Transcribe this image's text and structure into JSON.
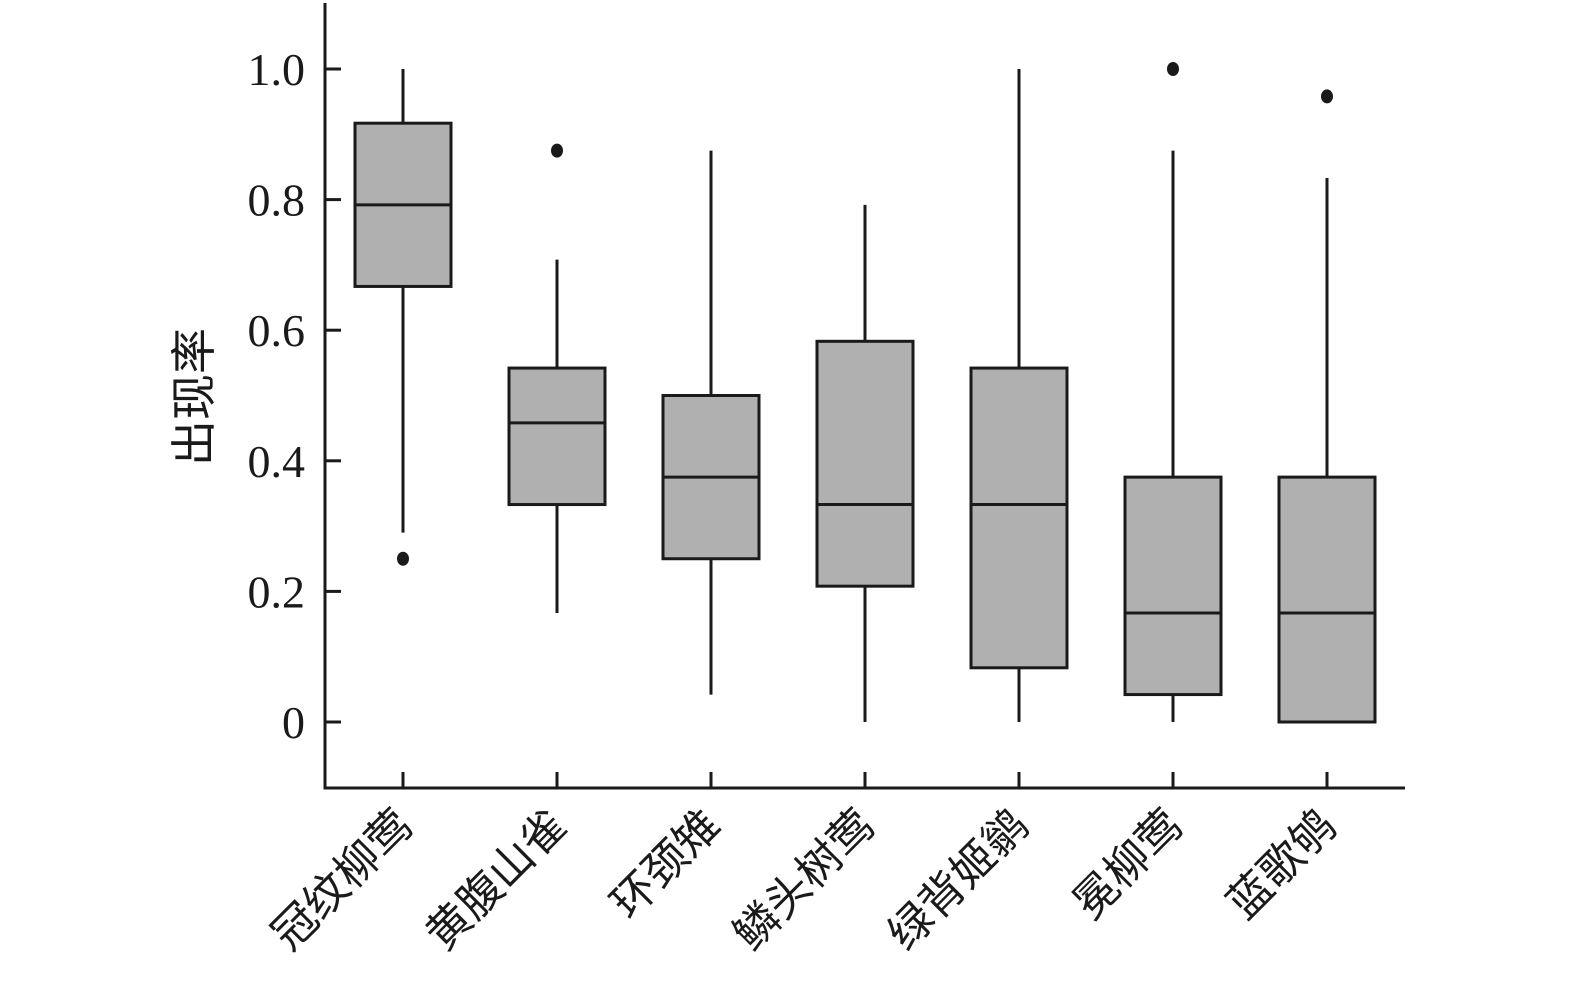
{
  "chart_data": {
    "type": "box",
    "title": "",
    "xlabel": "",
    "ylabel": "出现率",
    "ylim": [
      -0.1,
      1.1
    ],
    "yticks": [
      0,
      0.2,
      0.4,
      0.6,
      0.8,
      1.0
    ],
    "ytick_labels": [
      "0",
      "0.2",
      "0.4",
      "0.6",
      "0.8",
      "1.0"
    ],
    "grid": false,
    "box_color": "#b0b0b0",
    "line_color": "#1a1a1a",
    "categories": [
      "冠纹柳莺",
      "黄腹山雀",
      "环颈雉",
      "鳞头树莺",
      "绿背姬鹟",
      "冕柳莺",
      "蓝歌鸲"
    ],
    "boxes": [
      {
        "whisker_low": 0.29,
        "q1": 0.667,
        "median": 0.792,
        "q3": 0.917,
        "whisker_high": 1.0,
        "outliers": [
          0.25
        ]
      },
      {
        "whisker_low": 0.167,
        "q1": 0.333,
        "median": 0.458,
        "q3": 0.542,
        "whisker_high": 0.708,
        "outliers": [
          0.875
        ]
      },
      {
        "whisker_low": 0.042,
        "q1": 0.25,
        "median": 0.375,
        "q3": 0.5,
        "whisker_high": 0.875,
        "outliers": []
      },
      {
        "whisker_low": 0.0,
        "q1": 0.208,
        "median": 0.333,
        "q3": 0.583,
        "whisker_high": 0.792,
        "outliers": []
      },
      {
        "whisker_low": 0.0,
        "q1": 0.083,
        "median": 0.333,
        "q3": 0.542,
        "whisker_high": 1.0,
        "outliers": []
      },
      {
        "whisker_low": 0.0,
        "q1": 0.042,
        "median": 0.167,
        "q3": 0.375,
        "whisker_high": 0.875,
        "outliers": [
          1.0
        ]
      },
      {
        "whisker_low": 0.0,
        "q1": 0.0,
        "median": 0.167,
        "q3": 0.375,
        "whisker_high": 0.833,
        "outliers": [
          0.958
        ]
      }
    ]
  }
}
